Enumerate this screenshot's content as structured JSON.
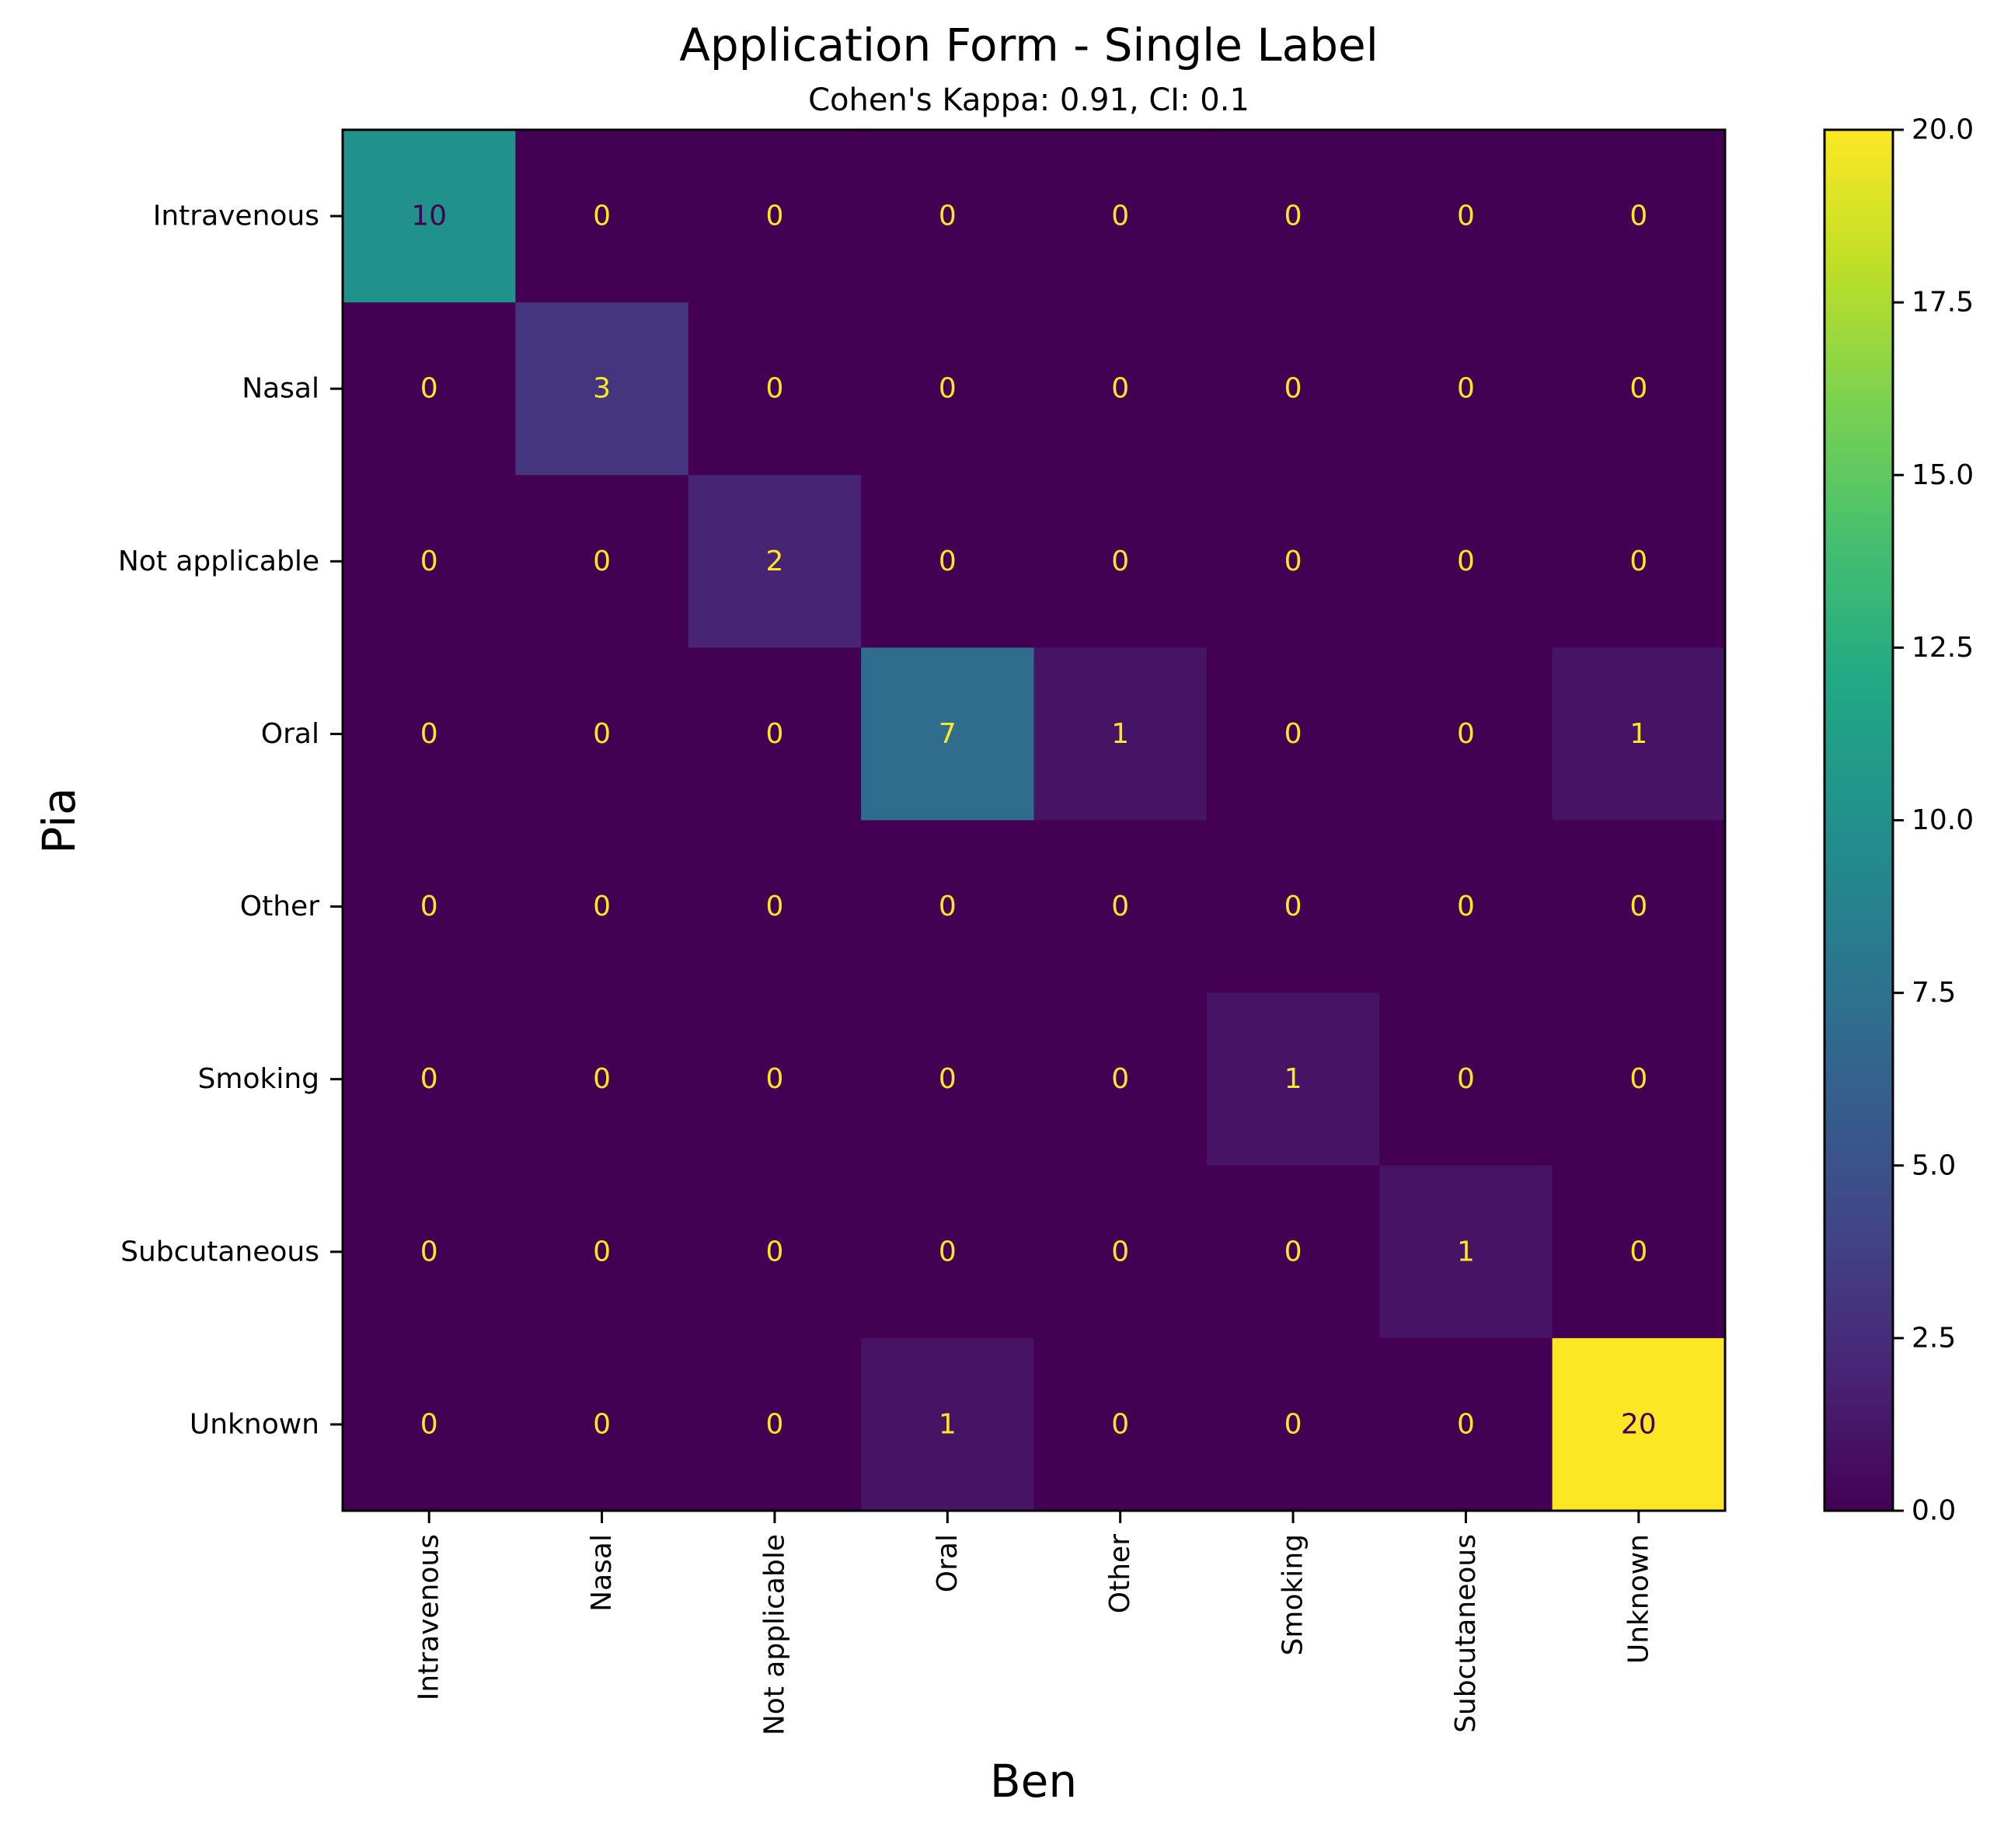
{
  "chart_data": {
    "type": "heatmap",
    "title": "Application Form - Single Label",
    "subtitle": "Cohen's Kappa: 0.91, CI: 0.1",
    "xlabel": "Ben",
    "ylabel": "Pia",
    "x_categories": [
      "Intravenous",
      "Nasal",
      "Not applicable",
      "Oral",
      "Other",
      "Smoking",
      "Subcutaneous",
      "Unknown"
    ],
    "y_categories": [
      "Intravenous",
      "Nasal",
      "Not applicable",
      "Oral",
      "Other",
      "Smoking",
      "Subcutaneous",
      "Unknown"
    ],
    "matrix": [
      [
        10,
        0,
        0,
        0,
        0,
        0,
        0,
        0
      ],
      [
        0,
        3,
        0,
        0,
        0,
        0,
        0,
        0
      ],
      [
        0,
        0,
        2,
        0,
        0,
        0,
        0,
        0
      ],
      [
        0,
        0,
        0,
        7,
        1,
        0,
        0,
        1
      ],
      [
        0,
        0,
        0,
        0,
        0,
        0,
        0,
        0
      ],
      [
        0,
        0,
        0,
        0,
        0,
        1,
        0,
        0
      ],
      [
        0,
        0,
        0,
        0,
        0,
        0,
        1,
        0
      ],
      [
        0,
        0,
        0,
        1,
        0,
        0,
        0,
        20
      ]
    ],
    "colorscale": "viridis",
    "color_range": [
      0,
      20
    ],
    "colorbar_ticks": [
      "0.0",
      "2.5",
      "5.0",
      "7.5",
      "10.0",
      "12.5",
      "15.0",
      "17.5",
      "20.0"
    ],
    "colorbar_tick_values": [
      0,
      2.5,
      5,
      7.5,
      10,
      12.5,
      15,
      17.5,
      20
    ],
    "grid": false,
    "label_colors": {
      "on_dark": "#fde725",
      "on_light": "#440154"
    },
    "frame_color": "#000000",
    "text_color": "#000000"
  }
}
